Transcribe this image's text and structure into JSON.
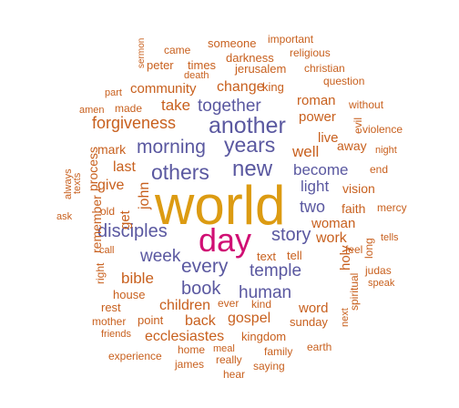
{
  "cloud": {
    "colors": {
      "orange": "#c8601e",
      "purple": "#5a58a0",
      "gold": "#dc9b12",
      "magenta": "#d00f74"
    },
    "words": [
      {
        "text": "world",
        "color": "gold"
      },
      {
        "text": "day",
        "color": "magenta"
      },
      {
        "text": "new",
        "color": "purple"
      },
      {
        "text": "another",
        "color": "purple"
      },
      {
        "text": "years",
        "color": "purple"
      },
      {
        "text": "others",
        "color": "purple"
      },
      {
        "text": "morning",
        "color": "purple"
      },
      {
        "text": "disciples",
        "color": "purple"
      },
      {
        "text": "every",
        "color": "purple"
      },
      {
        "text": "story",
        "color": "purple"
      },
      {
        "text": "temple",
        "color": "purple"
      },
      {
        "text": "week",
        "color": "purple"
      },
      {
        "text": "book",
        "color": "purple"
      },
      {
        "text": "human",
        "color": "purple"
      },
      {
        "text": "together",
        "color": "purple"
      },
      {
        "text": "become",
        "color": "purple"
      },
      {
        "text": "light",
        "color": "purple"
      },
      {
        "text": "two",
        "color": "purple"
      },
      {
        "text": "well",
        "color": "orange"
      },
      {
        "text": "forgiveness",
        "color": "orange"
      },
      {
        "text": "take",
        "color": "orange"
      },
      {
        "text": "change",
        "color": "orange"
      },
      {
        "text": "community",
        "color": "orange"
      },
      {
        "text": "last",
        "color": "orange"
      },
      {
        "text": "give",
        "color": "orange"
      },
      {
        "text": "john",
        "color": "orange"
      },
      {
        "text": "get",
        "color": "orange"
      },
      {
        "text": "bible",
        "color": "orange"
      },
      {
        "text": "children",
        "color": "orange"
      },
      {
        "text": "back",
        "color": "orange"
      },
      {
        "text": "gospel",
        "color": "orange"
      },
      {
        "text": "ecclesiastes",
        "color": "orange"
      },
      {
        "text": "work",
        "color": "orange"
      },
      {
        "text": "woman",
        "color": "orange"
      },
      {
        "text": "live",
        "color": "orange"
      },
      {
        "text": "power",
        "color": "orange"
      },
      {
        "text": "roman",
        "color": "orange"
      },
      {
        "text": "word",
        "color": "orange"
      },
      {
        "text": "holy",
        "color": "orange"
      },
      {
        "text": "faith",
        "color": "orange"
      },
      {
        "text": "vision",
        "color": "orange"
      },
      {
        "text": "away",
        "color": "orange"
      },
      {
        "text": "mark",
        "color": "orange"
      },
      {
        "text": "process",
        "color": "orange"
      },
      {
        "text": "remember",
        "color": "orange"
      },
      {
        "text": "house",
        "color": "orange"
      },
      {
        "text": "rest",
        "color": "orange"
      },
      {
        "text": "point",
        "color": "orange"
      },
      {
        "text": "mother",
        "color": "orange"
      },
      {
        "text": "sunday",
        "color": "orange"
      },
      {
        "text": "kingdom",
        "color": "orange"
      },
      {
        "text": "times",
        "color": "orange"
      },
      {
        "text": "peter",
        "color": "orange"
      },
      {
        "text": "darkness",
        "color": "orange"
      },
      {
        "text": "jerusalem",
        "color": "orange"
      },
      {
        "text": "someone",
        "color": "orange"
      },
      {
        "text": "important",
        "color": "orange"
      },
      {
        "text": "religious",
        "color": "orange"
      },
      {
        "text": "christian",
        "color": "orange"
      },
      {
        "text": "question",
        "color": "orange"
      },
      {
        "text": "king",
        "color": "orange"
      },
      {
        "text": "came",
        "color": "orange"
      },
      {
        "text": "death",
        "color": "orange"
      },
      {
        "text": "sermon",
        "color": "orange"
      },
      {
        "text": "made",
        "color": "orange"
      },
      {
        "text": "amen",
        "color": "orange"
      },
      {
        "text": "part",
        "color": "orange"
      },
      {
        "text": "without",
        "color": "orange"
      },
      {
        "text": "evil",
        "color": "orange"
      },
      {
        "text": "violence",
        "color": "orange"
      },
      {
        "text": "night",
        "color": "orange"
      },
      {
        "text": "end",
        "color": "orange"
      },
      {
        "text": "mercy",
        "color": "orange"
      },
      {
        "text": "tells",
        "color": "orange"
      },
      {
        "text": "long",
        "color": "orange"
      },
      {
        "text": "feel",
        "color": "orange"
      },
      {
        "text": "judas",
        "color": "orange"
      },
      {
        "text": "speak",
        "color": "orange"
      },
      {
        "text": "spiritual",
        "color": "orange"
      },
      {
        "text": "text",
        "color": "orange"
      },
      {
        "text": "tell",
        "color": "orange"
      },
      {
        "text": "ever",
        "color": "orange"
      },
      {
        "text": "kind",
        "color": "orange"
      },
      {
        "text": "next",
        "color": "orange"
      },
      {
        "text": "earth",
        "color": "orange"
      },
      {
        "text": "family",
        "color": "orange"
      },
      {
        "text": "saying",
        "color": "orange"
      },
      {
        "text": "meal",
        "color": "orange"
      },
      {
        "text": "home",
        "color": "orange"
      },
      {
        "text": "really",
        "color": "orange"
      },
      {
        "text": "hear",
        "color": "orange"
      },
      {
        "text": "james",
        "color": "orange"
      },
      {
        "text": "experience",
        "color": "orange"
      },
      {
        "text": "friends",
        "color": "orange"
      },
      {
        "text": "right",
        "color": "orange"
      },
      {
        "text": "call",
        "color": "orange"
      },
      {
        "text": "old",
        "color": "orange"
      },
      {
        "text": "ask",
        "color": "orange"
      },
      {
        "text": "always",
        "color": "orange"
      },
      {
        "text": "texts",
        "color": "orange"
      }
    ]
  }
}
